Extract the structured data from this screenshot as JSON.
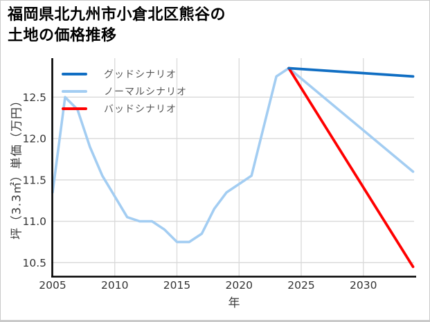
{
  "page": {
    "title_line1": "福岡県北九州市小倉北区熊谷の",
    "title_line2": "土地の価格推移"
  },
  "chart_data": {
    "type": "line",
    "title": "福岡県北九州市小倉北区熊谷の土地の価格推移",
    "xlabel": "年",
    "ylabel": "坪（3.3㎡）単価（万円）",
    "xlim": [
      2004.9,
      2034.3
    ],
    "ylim": [
      10.33,
      12.97
    ],
    "xticks": [
      2005,
      2010,
      2015,
      2020,
      2025,
      2030
    ],
    "yticks": [
      "10.5",
      "11.0",
      "11.5",
      "12.0",
      "12.5"
    ],
    "grid": true,
    "legend_position": "top-left-inside",
    "colors": {
      "grid": "#d9d9d9",
      "axis": "#000000",
      "tick_text": "#333333",
      "legend_text": "#555555"
    },
    "series": [
      {
        "name": "グッドシナリオ",
        "role": "good-scenario-forecast",
        "color": "#106ec3",
        "x": [
          2024,
          2034
        ],
        "values": [
          12.85,
          12.75
        ]
      },
      {
        "name": "ノーマルシナリオ",
        "role": "history-and-normal-scenario",
        "color": "#a3cdf2",
        "x": [
          2005,
          2006,
          2007,
          2008,
          2009,
          2010,
          2011,
          2012,
          2013,
          2014,
          2015,
          2016,
          2017,
          2018,
          2019,
          2020,
          2021,
          2022,
          2023,
          2024,
          2034
        ],
        "values": [
          11.35,
          12.5,
          12.35,
          11.9,
          11.55,
          11.3,
          11.05,
          11.0,
          11.0,
          10.9,
          10.75,
          10.75,
          10.85,
          11.15,
          11.35,
          11.45,
          11.55,
          12.15,
          12.75,
          12.85,
          11.6
        ]
      },
      {
        "name": "バッドシナリオ",
        "role": "bad-scenario-forecast",
        "color": "#ff0000",
        "x": [
          2024,
          2034
        ],
        "values": [
          12.85,
          10.45
        ]
      }
    ]
  }
}
